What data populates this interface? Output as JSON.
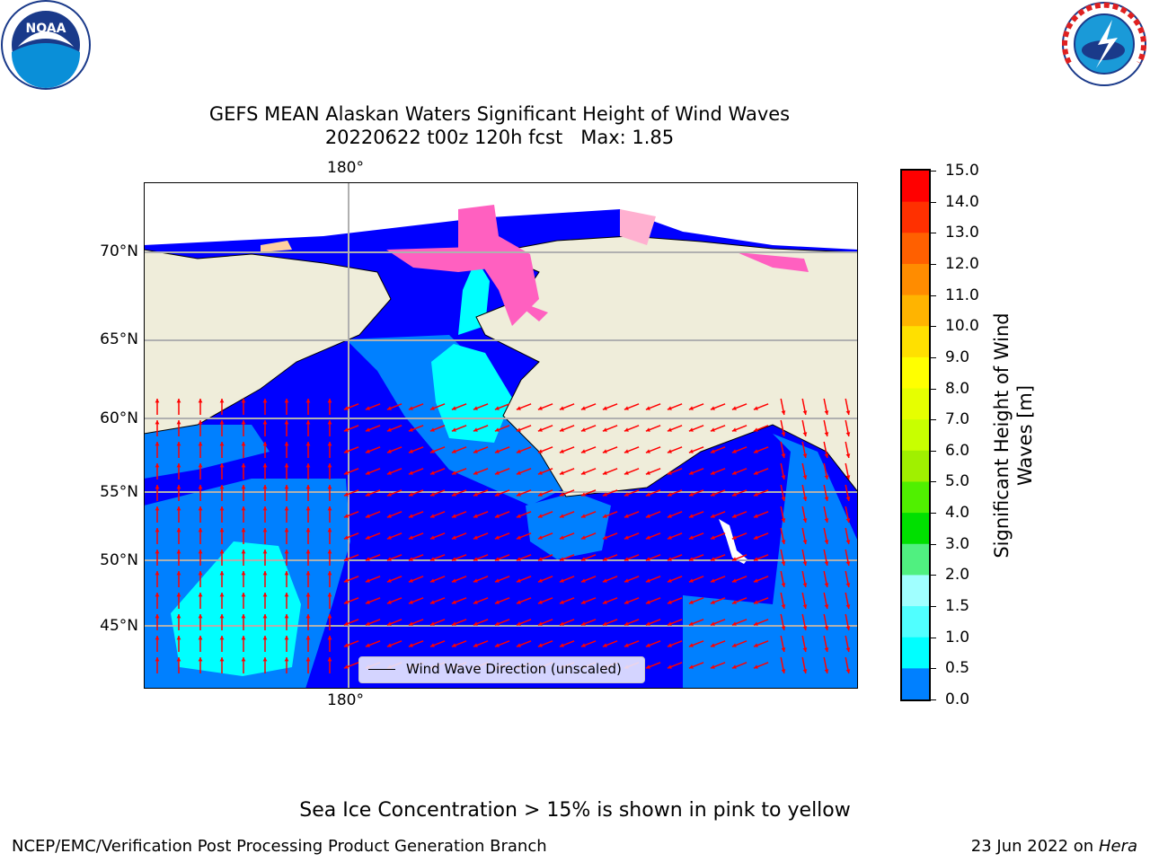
{
  "title": {
    "line1": "GEFS MEAN Alaskan Waters Significant Height of Wind Waves",
    "line2": "20220622 t00z 120h fcst   Max: 1.85"
  },
  "logos": {
    "left": {
      "icon": "noaa-logo-icon",
      "text": "NOAA"
    },
    "right": {
      "icon": "nws-logo-icon",
      "text": "NATIONAL WEATHER SERVICE"
    }
  },
  "map": {
    "lat_labels": [
      "70°N",
      "65°N",
      "60°N",
      "55°N",
      "50°N",
      "45°N"
    ],
    "lon_label_top": "180°",
    "lon_label_bottom": "180°",
    "legend_label": "Wind Wave Direction (unscaled)",
    "colors": {
      "land": "#efedda",
      "ocean_low": "#0000ff",
      "ocean_mid": "#0080ff",
      "ocean_high": "#00ffff",
      "arrow": "#ff0000",
      "ice": "#ff60c0"
    }
  },
  "colorbar": {
    "label": "Significant Height of Wind Waves [m]",
    "label_line1": "Significant Height of Wind",
    "label_line2": "Waves [m]",
    "ticks": [
      "15.0",
      "14.0",
      "13.0",
      "12.0",
      "11.0",
      "10.0",
      "9.0",
      "8.0",
      "7.0",
      "6.0",
      "5.0",
      "4.0",
      "3.0",
      "2.0",
      "1.5",
      "1.0",
      "0.5",
      "0.0"
    ],
    "colors": [
      "#ff0000",
      "#ff3000",
      "#ff6000",
      "#ff8c00",
      "#ffb400",
      "#ffe000",
      "#ffff00",
      "#e6ff00",
      "#c8ff00",
      "#a0f000",
      "#50f000",
      "#00e000",
      "#50f080",
      "#a0ffff",
      "#50ffff",
      "#00ffff",
      "#0080ff",
      "#0000ff"
    ]
  },
  "footer": {
    "sea_ice_note": "Sea Ice Concentration > 15% is shown in pink to yellow",
    "left": "NCEP/EMC/Verification Post Processing Product Generation Branch",
    "right_date": "23 Jun 2022 on",
    "right_host": "Hera"
  }
}
